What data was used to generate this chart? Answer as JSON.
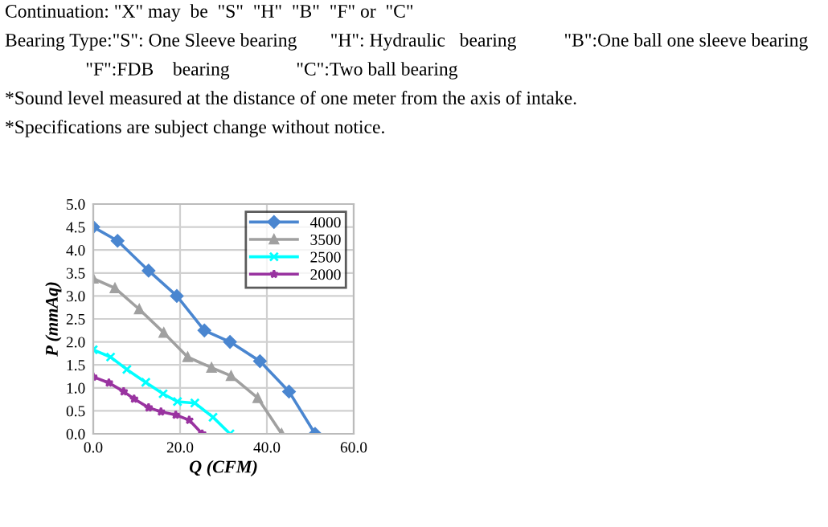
{
  "chart_data": {
    "type": "line",
    "xlabel": "Q (CFM)",
    "ylabel": "P (mmAq)",
    "annotations": [
      "Continuation: \"X\" may  be  \"S\"  \"H\"  \"B\"  \"F\" or  \"C\"",
      "Bearing Type:\"S\": One Sleeve bearing       \"H\": Hydraulic   bearing          \"B\":One ball one sleeve bearing",
      "                 \"F\":FDB    bearing              \"C\":Two ball bearing",
      "*Sound level measured at the distance of one meter from the axis of intake.",
      "*Specifications are subject change without notice."
    ],
    "series": [
      {
        "name": "4000",
        "color": "#4a86d0",
        "marker": "diamond",
        "x": [
          0,
          5.6,
          12.75,
          19.25,
          25.6,
          31.5,
          38.4,
          45.1,
          51.1
        ],
        "values": [
          4.5,
          4.2,
          3.55,
          3.0,
          2.25,
          2.0,
          1.58,
          0.92,
          0
        ]
      },
      {
        "name": "3500",
        "color": "#a0a0a0",
        "marker": "triangle",
        "x": [
          0,
          5,
          10.6,
          16.25,
          21.75,
          27.25,
          31.75,
          37.9,
          43.4
        ],
        "values": [
          3.38,
          3.17,
          2.71,
          2.2,
          1.67,
          1.44,
          1.26,
          0.78,
          0
        ]
      },
      {
        "name": "2500",
        "color": "#00ffff",
        "marker": "cross",
        "x": [
          0,
          4,
          7.75,
          12.1,
          16.1,
          19.4,
          23.4,
          27.6,
          31.5
        ],
        "values": [
          1.83,
          1.67,
          1.4,
          1.12,
          0.87,
          0.7,
          0.67,
          0.36,
          0
        ]
      },
      {
        "name": "2000",
        "color": "#9933a0",
        "marker": "star",
        "x": [
          0,
          3.6,
          7,
          9.4,
          12.75,
          15.6,
          19,
          22.1,
          25.1
        ],
        "values": [
          1.24,
          1.11,
          0.92,
          0.76,
          0.57,
          0.48,
          0.41,
          0.3,
          0
        ]
      }
    ],
    "xlim": [
      0,
      60
    ],
    "xticks": [
      {
        "value": 0,
        "label": "0.0"
      },
      {
        "value": 20,
        "label": "20.0"
      },
      {
        "value": 40,
        "label": "40.0"
      },
      {
        "value": 60,
        "label": "60.0"
      }
    ],
    "ylim": [
      0,
      5
    ],
    "yticks": [
      {
        "value": 0,
        "label": "0.0"
      },
      {
        "value": 0.5,
        "label": "0.5"
      },
      {
        "value": 1,
        "label": "1.0"
      },
      {
        "value": 1.5,
        "label": "1.5"
      },
      {
        "value": 2,
        "label": "2.0"
      },
      {
        "value": 2.5,
        "label": "2.5"
      },
      {
        "value": 3,
        "label": "3.0"
      },
      {
        "value": 3.5,
        "label": "3.5"
      },
      {
        "value": 4,
        "label": "4.0"
      },
      {
        "value": 4.5,
        "label": "4.5"
      },
      {
        "value": 5,
        "label": "5.0"
      }
    ],
    "grid": true,
    "legend": "top right",
    "line_style": "solid"
  }
}
